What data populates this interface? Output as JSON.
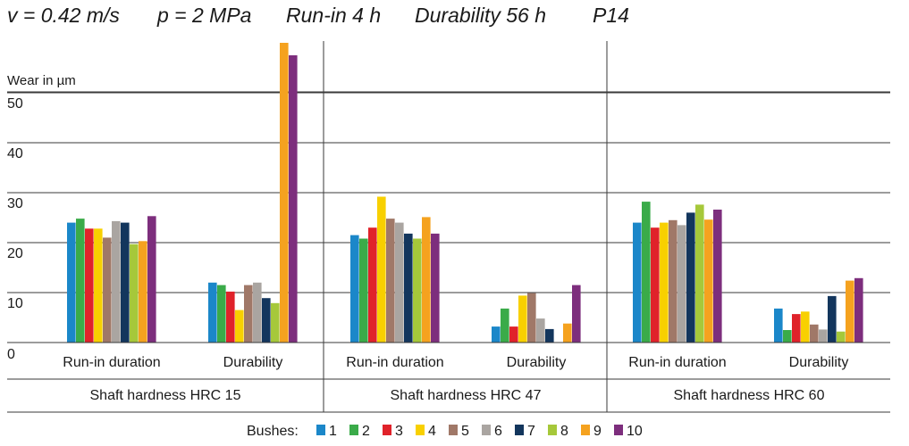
{
  "header": {
    "items": [
      "v = 0.42 m/s",
      "p = 2 MPa",
      "Run-in 4 h",
      "Durability 56 h",
      "P14"
    ]
  },
  "chart_data": {
    "type": "bar",
    "ylabel": "Wear in µm",
    "ylim": [
      0,
      50
    ],
    "yticks": [
      0,
      10,
      20,
      30,
      40,
      50
    ],
    "grid": true,
    "legend_title": "Bushes:",
    "legend_placement": "bottom-center",
    "series": [
      {
        "name": "1",
        "color": "#1b87c9"
      },
      {
        "name": "2",
        "color": "#3aab49"
      },
      {
        "name": "3",
        "color": "#e0222a"
      },
      {
        "name": "4",
        "color": "#f8d000"
      },
      {
        "name": "5",
        "color": "#a07868"
      },
      {
        "name": "6",
        "color": "#aaa5a1"
      },
      {
        "name": "7",
        "color": "#13365d"
      },
      {
        "name": "8",
        "color": "#a6c83a"
      },
      {
        "name": "9",
        "color": "#f5a21f"
      },
      {
        "name": "10",
        "color": "#7d2e7d"
      }
    ],
    "groups": [
      {
        "label": "Shaft hardness HRC 15",
        "subgroups": [
          {
            "label": "Run-in duration",
            "values": [
              24,
              24.8,
              22.8,
              22.8,
              21,
              24.3,
              24,
              19.7,
              20.3,
              25.3
            ]
          },
          {
            "label": "Durability",
            "values": [
              12,
              11.5,
              10.2,
              6.5,
              11.5,
              12,
              8.9,
              7.9,
              60,
              57.5
            ]
          }
        ]
      },
      {
        "label": "Shaft hardness HRC 47",
        "subgroups": [
          {
            "label": "Run-in duration",
            "values": [
              21.5,
              20.8,
              23,
              29.2,
              24.8,
              24,
              21.8,
              20.8,
              25.1,
              21.8
            ]
          },
          {
            "label": "Durability",
            "values": [
              3.2,
              6.8,
              3.2,
              9.4,
              9.9,
              4.8,
              2.7,
              0,
              3.8,
              11.5
            ]
          }
        ]
      },
      {
        "label": "Shaft hardness HRC 60",
        "subgroups": [
          {
            "label": "Run-in duration",
            "values": [
              24,
              28.2,
              23,
              24,
              24.5,
              23.5,
              26,
              27.6,
              24.6,
              26.6
            ]
          },
          {
            "label": "Durability",
            "values": [
              6.8,
              2.5,
              5.7,
              6.2,
              3.6,
              2.6,
              9.3,
              2.2,
              12.4,
              12.9
            ]
          }
        ]
      }
    ]
  }
}
